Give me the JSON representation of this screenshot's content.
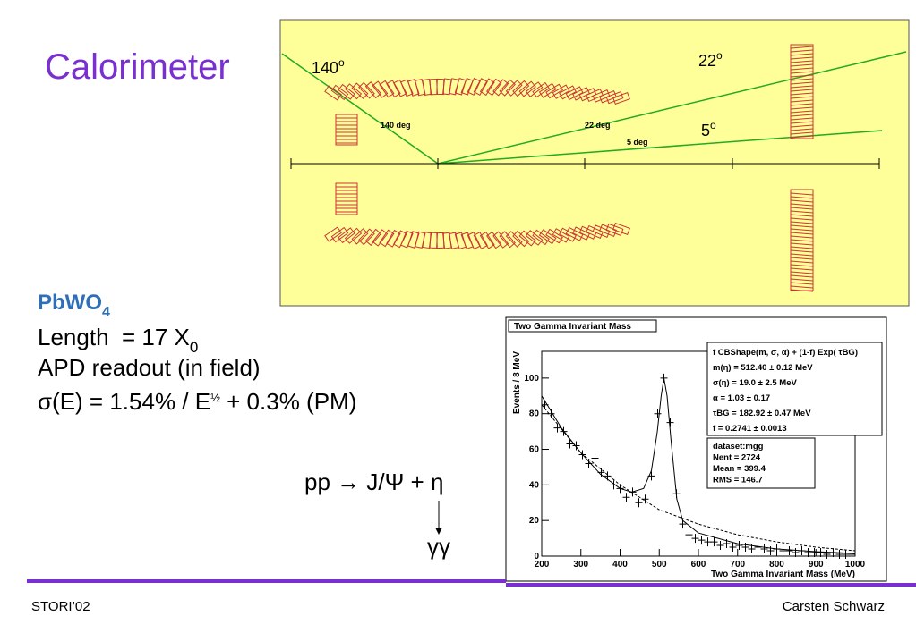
{
  "title": "Calorimeter",
  "diagram": {
    "angles": [
      {
        "text": "140",
        "sup": "o"
      },
      {
        "text": "22",
        "sup": "o"
      },
      {
        "text": "5",
        "sup": "o"
      }
    ],
    "line_labels": [
      "140 deg",
      "22 deg",
      "5 deg"
    ]
  },
  "specs": {
    "material": {
      "text": "PbWO",
      "sub": "4"
    },
    "length": {
      "text": "Length  = 17 X",
      "sub": "0"
    },
    "readout": "APD readout (in field)",
    "resolution": {
      "text": "σ(E) = 1.54% / E",
      "sup": "½",
      "tail": " + 0.3% (PM)"
    }
  },
  "reaction": {
    "main": "pp → J/Ψ + η",
    "decay": "γγ"
  },
  "footer": {
    "left": "STORI’02",
    "right": "Carsten Schwarz"
  },
  "chart_data": {
    "type": "scatter",
    "title": "Two Gamma Invariant Mass",
    "x_label": "Two Gamma Invariant Mass (MeV)",
    "y_label": "Events / 8 MeV",
    "xlim": [
      200,
      1000
    ],
    "xticks": [
      200,
      300,
      400,
      500,
      600,
      700,
      800,
      900,
      1000
    ],
    "ylim": [
      0,
      115
    ],
    "yticks": [
      0,
      20,
      40,
      60,
      80,
      100
    ],
    "points": {
      "x": [
        208,
        224,
        240,
        256,
        272,
        288,
        304,
        320,
        336,
        352,
        368,
        384,
        400,
        416,
        432,
        448,
        464,
        480,
        496,
        512,
        528,
        544,
        560,
        576,
        592,
        608,
        624,
        640,
        656,
        672,
        688,
        704,
        720,
        736,
        752,
        768,
        784,
        800,
        816,
        832,
        848,
        864,
        880,
        896,
        912,
        928,
        944,
        960,
        976,
        992
      ],
      "values": [
        85,
        80,
        72,
        70,
        63,
        62,
        57,
        52,
        55,
        47,
        45,
        40,
        38,
        33,
        36,
        30,
        32,
        45,
        80,
        100,
        75,
        35,
        18,
        12,
        10,
        9,
        8,
        8,
        6,
        7,
        5,
        6,
        5,
        4,
        5,
        4,
        3,
        4,
        3,
        3,
        2,
        3,
        2,
        2,
        2,
        1,
        2,
        1,
        1,
        1
      ]
    },
    "fit": {
      "x": [
        200,
        250,
        300,
        350,
        400,
        430,
        460,
        480,
        495,
        505,
        512,
        520,
        530,
        545,
        560,
        600,
        700,
        800,
        900,
        1000
      ],
      "values": [
        90,
        72,
        58,
        46,
        38,
        36,
        38,
        48,
        70,
        90,
        100,
        90,
        65,
        32,
        20,
        13,
        7,
        4,
        2.5,
        1.5
      ]
    },
    "background": {
      "x": [
        200,
        300,
        400,
        500,
        600,
        700,
        800,
        900,
        1000
      ],
      "values": [
        85,
        58,
        40,
        26,
        18,
        12,
        8,
        5,
        3
      ]
    },
    "fit_box": [
      "f CBShape(m, σ, α) + (1-f) Exp( τBG)",
      "m(η) = 512.40 ± 0.12 MeV",
      "σ(η) = 19.0 ± 2.5 MeV",
      "α = 1.03 ± 0.17",
      "τBG = 182.92 ± 0.47 MeV",
      "f = 0.2741 ± 0.0013"
    ],
    "dataset_box": [
      "dataset:mgg",
      "Nent = 2724",
      "Mean  = 399.4",
      "RMS   = 146.7"
    ]
  }
}
